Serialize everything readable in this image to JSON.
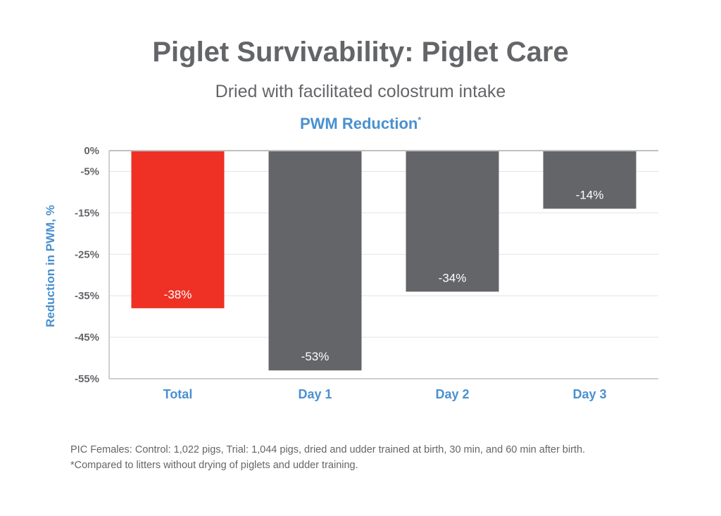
{
  "title": "Piglet Survivability: Piglet Care",
  "subtitle": "Dried with facilitated colostrum intake",
  "chart_title": "PWM Reduction",
  "chart_title_mark": "*",
  "footnotes": [
    "PIC Females: Control: 1,022 pigs, Trial: 1,044 pigs, dried and udder trained at birth, 30 min, and 60 min after birth.",
    "*Compared to litters without drying of piglets and udder training."
  ],
  "chart_data": {
    "type": "bar",
    "title": "PWM Reduction",
    "xlabel": "",
    "ylabel": "Reduction in PWM, %",
    "categories": [
      "Total",
      "Day 1",
      "Day 2",
      "Day 3"
    ],
    "values": [
      -38,
      -53,
      -34,
      -14
    ],
    "data_labels": [
      "-38%",
      "-53%",
      "-34%",
      "-14%"
    ],
    "bar_colors": [
      "#ee3124",
      "#646569",
      "#646569",
      "#646569"
    ],
    "ylim": [
      -55,
      0
    ],
    "yticks": [
      0,
      -5,
      -15,
      -25,
      -35,
      -45,
      -55
    ],
    "ytick_labels": [
      "0%",
      "-5%",
      "-15%",
      "-25%",
      "-35%",
      "-45%",
      "-55%"
    ],
    "grid": true,
    "colors": {
      "accent": "#4a90cf",
      "text": "#646569",
      "grid": "#e3e3e3",
      "axis": "#bfbfbf"
    }
  }
}
